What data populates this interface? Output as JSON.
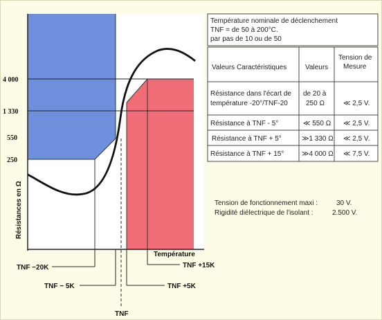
{
  "diagram": {
    "y_axis_label": "Résistances en Ω",
    "y_ticks": [
      "4 000",
      "1 330",
      "550",
      "250"
    ],
    "x_axis_label": "Température",
    "markers": {
      "tnf_minus_20k": "TNF −20K",
      "tnf_minus_5k": "TNF − 5K",
      "tnf": "TNF",
      "tnf_plus_5k": "TNF +5K",
      "tnf_plus_15k": "TNF +15K"
    },
    "colors": {
      "blue_zone": "#6d8fdc",
      "red_zone": "#f06d78",
      "curve": "#111111"
    }
  },
  "info_box": {
    "line1": "Température nominale de déclenchement",
    "line2": "TNF   = de 50 à 200°C.",
    "line3": "par pas de 10 ou de 50"
  },
  "table": {
    "headers": {
      "col1": "Valeurs Caractéristiques",
      "col2": "Valeurs",
      "col3_line1": "Tension de",
      "col3_line2": "Mesure"
    },
    "rows": [
      {
        "c1_l1": "Résistance dans l'écart de",
        "c1_l2": "température -20°/TNF-20",
        "c2_l1": "de 20 à",
        "c2_l2": "250 Ω",
        "c3": "≪ 2,5 V."
      },
      {
        "c1_l1": "Résistance à TNF - 5°",
        "c2_l1": "≪ 550 Ω",
        "c3": "≪ 2,5 V."
      },
      {
        "c1_l1": "Résistance à TNF + 5°",
        "c2_l1": "≫1 330 Ω",
        "c3": "≪ 2,5 V."
      },
      {
        "c1_l1": "Résistance à TNF + 15°",
        "c2_l1": "≫4 000 Ω",
        "c3": "≪ 7,5 V."
      }
    ]
  },
  "footer": {
    "line1_label": "Tension de fonctionnement maxi :",
    "line1_value": "30 V.",
    "line2_label": "Rigidité diélectrique de l'isolant  :",
    "line2_value": "2.500 V."
  }
}
